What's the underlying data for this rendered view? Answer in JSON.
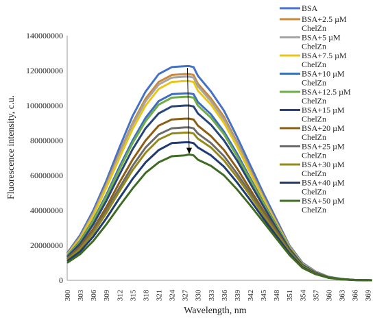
{
  "chart_data": {
    "type": "line",
    "title": "",
    "xlabel": "Wavelength, nm",
    "ylabel": "Fluorescence intensity, c.u.",
    "xlim": [
      300,
      370
    ],
    "ylim": [
      0,
      140000000
    ],
    "y_ticks": [
      "0",
      "20000000",
      "40000000",
      "60000000",
      "80000000",
      "100000000",
      "120000000",
      "140000000"
    ],
    "x_ticks": [
      "300",
      "303",
      "306",
      "309",
      "312",
      "315",
      "318",
      "321",
      "324",
      "327",
      "330",
      "333",
      "336",
      "339",
      "342",
      "345",
      "348",
      "351",
      "354",
      "357",
      "360",
      "363",
      "366",
      "369"
    ],
    "x": [
      300,
      303,
      306,
      309,
      312,
      315,
      318,
      321,
      324,
      327,
      328,
      329,
      330,
      333,
      336,
      339,
      342,
      345,
      348,
      351,
      354,
      357,
      360,
      363,
      366,
      369,
      370
    ],
    "legend_position": "right",
    "grid": false,
    "annotation": "arrow pointing downward at the peak near 328 nm",
    "series": [
      {
        "name": "BSA",
        "color": "#4472C4",
        "values": [
          15500000,
          26000000,
          40000000,
          57000000,
          76000000,
          94000000,
          108000000,
          118000000,
          122000000,
          122500000,
          122600000,
          122000000,
          117000000,
          108000000,
          97000000,
          82000000,
          66000000,
          50000000,
          35000000,
          20000000,
          10000000,
          5000000,
          2000000,
          800000,
          200000,
          50000,
          0
        ]
      },
      {
        "name": "BSA+2.5 µM ChelZn",
        "color": "#C9883A",
        "values": [
          15000000,
          25000000,
          38500000,
          55000000,
          73000000,
          90000000,
          104000000,
          113500000,
          117500000,
          118000000,
          118000000,
          117500000,
          112500000,
          104000000,
          93500000,
          79000000,
          63500000,
          48000000,
          33500000,
          19500000,
          9500000,
          4800000,
          1900000,
          750000,
          200000,
          50000,
          0
        ]
      },
      {
        "name": "BSA+5 µM ChelZn",
        "color": "#A5A5A5",
        "values": [
          14800000,
          24500000,
          38000000,
          54000000,
          72000000,
          89000000,
          102500000,
          112000000,
          116000000,
          116500000,
          116500000,
          116000000,
          111000000,
          102500000,
          92000000,
          78000000,
          62500000,
          47500000,
          33000000,
          19200000,
          9400000,
          4700000,
          1900000,
          750000,
          200000,
          50000,
          0
        ]
      },
      {
        "name": "BSA+7.5 µM ChelZn",
        "color": "#E8C619",
        "values": [
          14600000,
          24000000,
          37000000,
          53000000,
          70000000,
          86500000,
          100000000,
          109500000,
          113500000,
          114000000,
          114000000,
          113500000,
          108500000,
          100500000,
          90000000,
          76500000,
          61500000,
          46500000,
          32500000,
          19000000,
          9300000,
          4600000,
          1850000,
          700000,
          200000,
          50000,
          0
        ]
      },
      {
        "name": "BSA+10 µM ChelZn",
        "color": "#3E6EC0",
        "values": [
          14000000,
          22500000,
          34500000,
          49000000,
          65000000,
          80000000,
          93000000,
          102500000,
          106500000,
          107000000,
          107000000,
          106500000,
          102000000,
          95000000,
          85000000,
          72500000,
          58500000,
          44500000,
          31500000,
          18500000,
          9000000,
          4500000,
          1800000,
          700000,
          200000,
          50000,
          0
        ]
      },
      {
        "name": "BSA+12.5 µM ChelZn",
        "color": "#6FAD47",
        "values": [
          13800000,
          22000000,
          34000000,
          48000000,
          63500000,
          78500000,
          91000000,
          100500000,
          104500000,
          105000000,
          105000000,
          104500000,
          100000000,
          93000000,
          83500000,
          71000000,
          57500000,
          44000000,
          31000000,
          18300000,
          8900000,
          4400000,
          1800000,
          700000,
          200000,
          50000,
          0
        ]
      },
      {
        "name": "BSA+15 µM ChelZn",
        "color": "#27457A",
        "values": [
          13300000,
          21000000,
          32000000,
          45500000,
          60500000,
          75000000,
          87000000,
          95500000,
          99500000,
          100000000,
          100000000,
          99500000,
          95500000,
          89000000,
          80000000,
          68500000,
          55500000,
          42500000,
          30000000,
          17800000,
          8700000,
          4300000,
          1750000,
          650000,
          200000,
          50000,
          0
        ]
      },
      {
        "name": "BSA+20 µM ChelZn",
        "color": "#8B5E14",
        "values": [
          12500000,
          19500000,
          29500000,
          42000000,
          56000000,
          69000000,
          80000000,
          88500000,
          92000000,
          92500000,
          92500000,
          92000000,
          88500000,
          82500000,
          74500000,
          64000000,
          52000000,
          40000000,
          28500000,
          17000000,
          8300000,
          4100000,
          1700000,
          650000,
          200000,
          50000,
          0
        ]
      },
      {
        "name": "BSA+25 µM ChelZn",
        "color": "#6B6B6B",
        "values": [
          12000000,
          18500000,
          28000000,
          40000000,
          53000000,
          65500000,
          76000000,
          83500000,
          87000000,
          87500000,
          87500000,
          87000000,
          84000000,
          78500000,
          71000000,
          61000000,
          50000000,
          38500000,
          27500000,
          16500000,
          8100000,
          4000000,
          1650000,
          600000,
          200000,
          50000,
          0
        ]
      },
      {
        "name": "BSA+30 µM ChelZn",
        "color": "#94891A",
        "values": [
          11700000,
          18000000,
          27000000,
          38500000,
          51000000,
          63000000,
          73000000,
          80500000,
          84000000,
          84500000,
          84500000,
          84000000,
          81000000,
          76000000,
          68500000,
          59000000,
          48500000,
          37500000,
          26800000,
          16100000,
          7900000,
          3900000,
          1600000,
          600000,
          200000,
          50000,
          0
        ]
      },
      {
        "name": "BSA+40 µM ChelZn",
        "color": "#1F3B70",
        "values": [
          11000000,
          16500000,
          25000000,
          35500000,
          47000000,
          58000000,
          67500000,
          74500000,
          78500000,
          79000000,
          79000000,
          78500000,
          76000000,
          71500000,
          65000000,
          56000000,
          46000000,
          35500000,
          25500000,
          15400000,
          7500000,
          3700000,
          1500000,
          550000,
          150000,
          50000,
          0
        ]
      },
      {
        "name": "BSA+50 µM ChelZn",
        "color": "#3F6B22",
        "values": [
          10000000,
          15000000,
          22500000,
          32000000,
          42500000,
          52500000,
          61500000,
          67500000,
          71000000,
          71500000,
          72000000,
          71500000,
          69000000,
          65500000,
          60000000,
          52000000,
          43000000,
          33500000,
          24000000,
          14500000,
          7100000,
          3500000,
          1400000,
          500000,
          150000,
          50000,
          0
        ]
      }
    ]
  }
}
